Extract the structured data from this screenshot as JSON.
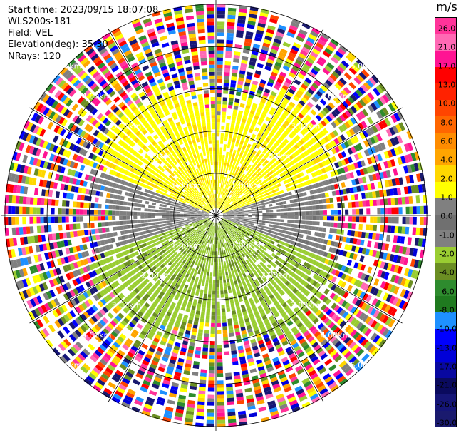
{
  "header": {
    "start_time": "Start time: 2023/09/15 18:07:08",
    "instrument": "WLS200s-181",
    "field": "Field: VEL",
    "elevation": "Elevation(deg): 35.30",
    "nrays": "NRays: 120"
  },
  "chart_data": {
    "type": "heatmap",
    "projection": "polar-ppi",
    "field": "VEL",
    "elevation_deg": 35.3,
    "n_rays": 120,
    "range_rings_km": [
      1,
      2,
      3,
      4,
      5
    ],
    "ring_labels": [
      "1.00km",
      "2.00km",
      "3.00km",
      "4.00km",
      "5.00km"
    ],
    "spoke_angles_deg": [
      0,
      30,
      60,
      90,
      120,
      150,
      180,
      210,
      240,
      270,
      300,
      330
    ],
    "max_range_km": 5.1,
    "velocity_pattern": {
      "towards_north": "positive 2 to 4 m/s (yellow)",
      "towards_south": "negative -2 to -4 m/s (green)",
      "east_west_band": "near zero (gray)",
      "outer_ranges": "noise (random colours)"
    }
  },
  "colorbar": {
    "unit": "m/s",
    "colors": [
      "#1a1a6e",
      "#151577",
      "#0a0a5e",
      "#0808a0",
      "#0000d8",
      "#0000ff",
      "#1e90ff",
      "#1f7a1f",
      "#2e8b2e",
      "#6b8e23",
      "#9acd32",
      "#808080",
      "#707070",
      "#808080",
      "#ffff00",
      "#ffd700",
      "#ffa500",
      "#ff8c00",
      "#ff6600",
      "#ff4500",
      "#ff2200",
      "#ff0000",
      "#ff1493",
      "#ff69b4",
      "#ff3399"
    ],
    "ticks": [
      "-30.0",
      "-26.0",
      "-21.0",
      "-17.0",
      "-13.0",
      "-10.0",
      "-8.0",
      "-6.0",
      "-4.0",
      "-2.0",
      "-1.0",
      "0.0",
      "1.0",
      "2.0",
      "4.0",
      "6.0",
      "8.0",
      "10.0",
      "13.0",
      "17.0",
      "21.0",
      "26.0"
    ]
  }
}
